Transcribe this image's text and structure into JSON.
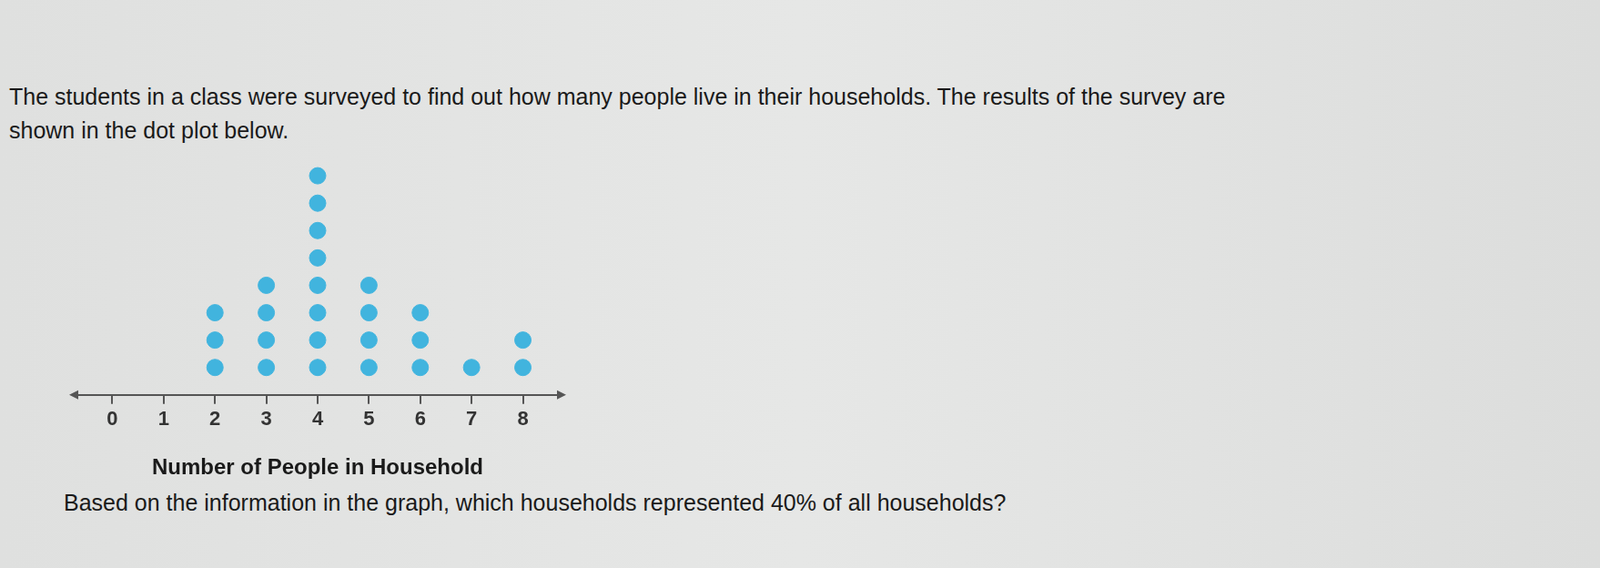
{
  "intro": [
    "The students in a class were surveyed to find out how many people live in their households.  The results of the survey are",
    "shown in the dot plot below."
  ],
  "question": "Based on the information in the graph, which households represented 40% of all households?",
  "chart_data": {
    "type": "dot",
    "x_label": "Number of People in Household",
    "x": [
      2,
      3,
      4,
      5,
      6,
      7,
      8
    ],
    "values": [
      3,
      4,
      8,
      4,
      3,
      1,
      2
    ],
    "color": "#41b4de",
    "xlim": [
      -0.7,
      8.7
    ],
    "xticks": [
      0,
      1,
      2,
      3,
      4,
      5,
      6,
      7,
      8
    ],
    "grid": false,
    "tick_labels": "x"
  }
}
